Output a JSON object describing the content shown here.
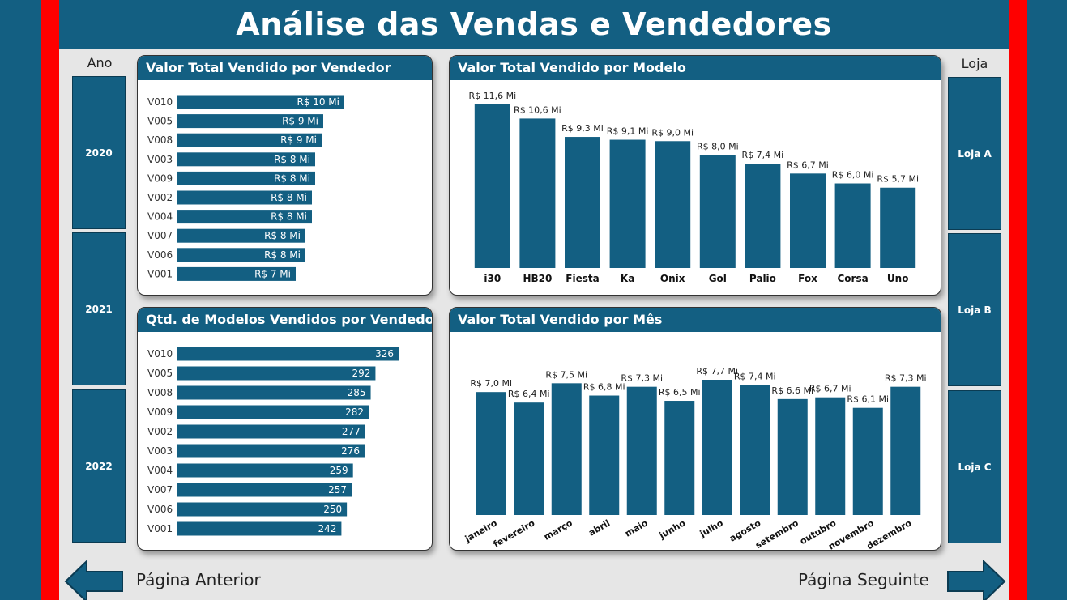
{
  "header": {
    "title": "Análise das Vendas e Vendedores"
  },
  "year_slicer": {
    "title": "Ano",
    "items": [
      "2020",
      "2021",
      "2022"
    ]
  },
  "store_slicer": {
    "title": "Loja",
    "items": [
      "Loja A",
      "Loja B",
      "Loja C"
    ]
  },
  "nav": {
    "prev_label": "Página Anterior",
    "next_label": "Página Seguinte"
  },
  "colors": {
    "bar": "#135f82",
    "accent": "#fe0000",
    "canvas": "#e6e6e6"
  },
  "chart_data": [
    {
      "id": "seller-value",
      "type": "bar",
      "orientation": "horizontal",
      "title": "Valor Total Vendido por Vendedor",
      "categories": [
        "V010",
        "V005",
        "V008",
        "V003",
        "V009",
        "V002",
        "V004",
        "V007",
        "V006",
        "V001"
      ],
      "values": [
        10.3,
        9.0,
        8.9,
        8.5,
        8.5,
        8.3,
        8.3,
        7.9,
        7.9,
        7.3
      ],
      "labels": [
        "R$ 10 Mi",
        "R$ 9 Mi",
        "R$ 9 Mi",
        "R$ 8 Mi",
        "R$ 8 Mi",
        "R$ 8 Mi",
        "R$ 8 Mi",
        "R$ 8 Mi",
        "R$ 8 Mi",
        "R$ 7 Mi"
      ],
      "xlim": [
        0,
        15.5
      ]
    },
    {
      "id": "model-value",
      "type": "bar",
      "orientation": "vertical",
      "title": "Valor Total Vendido por Modelo",
      "categories": [
        "i30",
        "HB20",
        "Fiesta",
        "Ka",
        "Onix",
        "Gol",
        "Palio",
        "Fox",
        "Corsa",
        "Uno"
      ],
      "values": [
        11.6,
        10.6,
        9.3,
        9.1,
        9.0,
        8.0,
        7.4,
        6.7,
        6.0,
        5.7
      ],
      "labels": [
        "R$ 11,6 Mi",
        "R$ 10,6 Mi",
        "R$ 9,3 Mi",
        "R$ 9,1 Mi",
        "R$ 9,0 Mi",
        "R$ 8,0 Mi",
        "R$ 7,4 Mi",
        "R$ 6,7 Mi",
        "R$ 6,0 Mi",
        "R$ 5,7 Mi"
      ],
      "ylim": [
        0,
        11.6
      ]
    },
    {
      "id": "seller-qty",
      "type": "bar",
      "orientation": "horizontal",
      "title": "Qtd. de Modelos Vendidos por Vendedor",
      "categories": [
        "V010",
        "V005",
        "V008",
        "V009",
        "V002",
        "V003",
        "V004",
        "V007",
        "V006",
        "V001"
      ],
      "values": [
        326,
        292,
        285,
        282,
        277,
        276,
        259,
        257,
        250,
        242
      ],
      "labels": [
        "326",
        "292",
        "285",
        "282",
        "277",
        "276",
        "259",
        "257",
        "250",
        "242"
      ],
      "xlim": [
        0,
        464
      ]
    },
    {
      "id": "month-value",
      "type": "bar",
      "orientation": "vertical",
      "title": "Valor Total Vendido por Mês",
      "categories": [
        "janeiro",
        "fevereiro",
        "março",
        "abril",
        "maio",
        "junho",
        "julho",
        "agosto",
        "setembro",
        "outubro",
        "novembro",
        "dezembro"
      ],
      "values": [
        7.0,
        6.4,
        7.5,
        6.8,
        7.3,
        6.5,
        7.7,
        7.4,
        6.6,
        6.7,
        6.1,
        7.3
      ],
      "labels": [
        "R$ 7,0 Mi",
        "R$ 6,4 Mi",
        "R$ 7,5 Mi",
        "R$ 6,8 Mi",
        "R$ 7,3 Mi",
        "R$ 6,5 Mi",
        "R$ 7,7 Mi",
        "R$ 7,4 Mi",
        "R$ 6,6 Mi",
        "R$ 6,7 Mi",
        "R$ 6,1 Mi",
        "R$ 7,3 Mi"
      ],
      "ylim": [
        0,
        7.7
      ]
    }
  ]
}
